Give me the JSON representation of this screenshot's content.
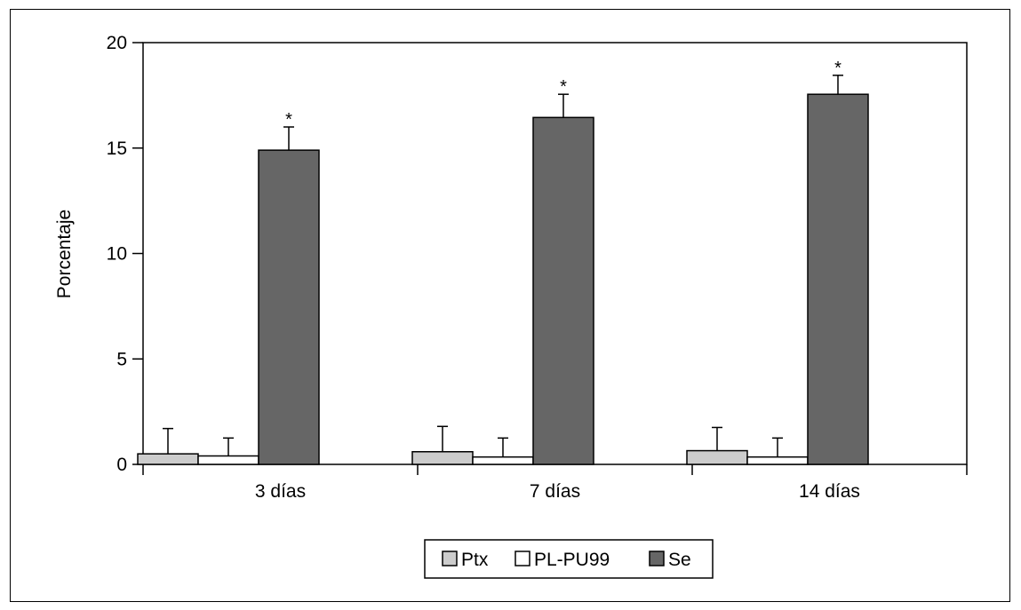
{
  "colors": {
    "Ptx": "#cccccc",
    "PL-PU99": "#ffffff",
    "Se": "#666666",
    "stroke": "#000000"
  },
  "chart_data": {
    "type": "bar",
    "ylabel": "Porcentaje",
    "xlabel": "",
    "ylim": [
      0,
      20
    ],
    "yticks": [
      0,
      5,
      10,
      15,
      20
    ],
    "categories": [
      "3 días",
      "7 días",
      "14 días"
    ],
    "series": [
      {
        "name": "Ptx",
        "values": [
          0.5,
          0.6,
          0.65
        ],
        "errors": [
          1.2,
          1.2,
          1.1
        ]
      },
      {
        "name": "PL-PU99",
        "values": [
          0.4,
          0.35,
          0.35
        ],
        "errors": [
          0.85,
          0.9,
          0.9
        ]
      },
      {
        "name": "Se",
        "values": [
          14.9,
          16.45,
          17.55
        ],
        "errors": [
          1.1,
          1.1,
          0.9
        ]
      }
    ],
    "annotations": [
      {
        "text": "*",
        "series": "Se",
        "category": "3 días"
      },
      {
        "text": "*",
        "series": "Se",
        "category": "7 días"
      },
      {
        "text": "*",
        "series": "Se",
        "category": "14 días"
      }
    ],
    "legend": {
      "position": "bottom-center"
    },
    "grid": false
  }
}
